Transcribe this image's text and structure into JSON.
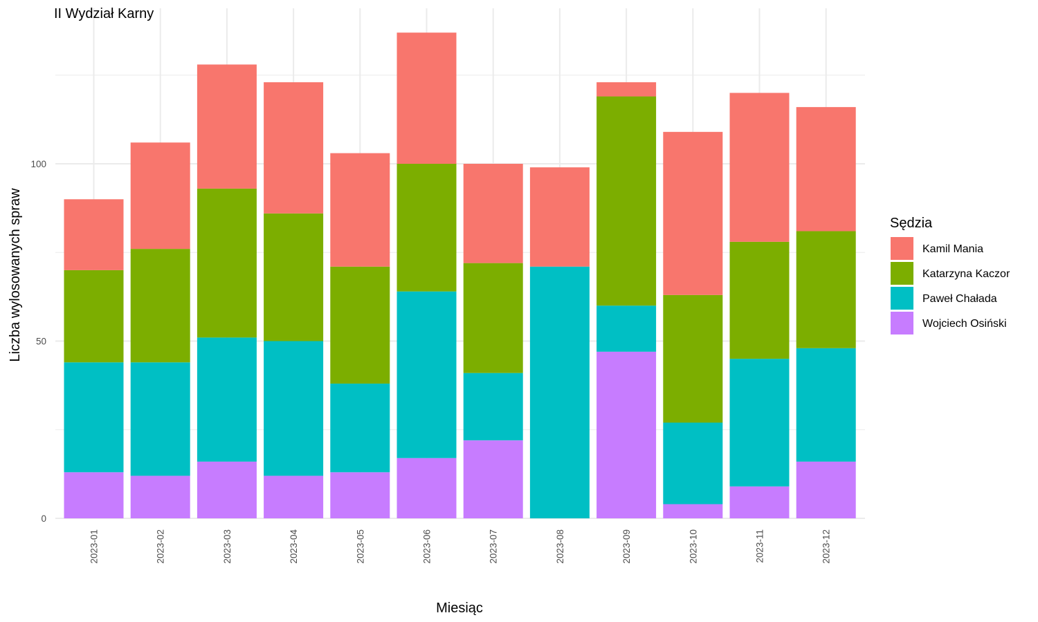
{
  "chart_data": {
    "type": "bar",
    "stacked": true,
    "title": "II Wydział Karny",
    "xlabel": "Miesiąc",
    "ylabel": "Liczba wylosowanych spraw",
    "ylim": [
      0,
      140
    ],
    "yticks": [
      0,
      50,
      100
    ],
    "grid": true,
    "legend": {
      "title": "Sędzia",
      "position": "right"
    },
    "categories": [
      "2023-01",
      "2023-02",
      "2023-03",
      "2023-04",
      "2023-05",
      "2023-06",
      "2023-07",
      "2023-08",
      "2023-09",
      "2023-10",
      "2023-11",
      "2023-12"
    ],
    "series": [
      {
        "name": "Wojciech Osiński",
        "color": "#C77CFF",
        "values": [
          13,
          12,
          16,
          12,
          13,
          17,
          22,
          0,
          47,
          4,
          9,
          16
        ]
      },
      {
        "name": "Paweł Chałada",
        "color": "#00BFC4",
        "values": [
          31,
          32,
          35,
          38,
          25,
          47,
          19,
          71,
          13,
          23,
          36,
          32
        ]
      },
      {
        "name": "Katarzyna Kaczor",
        "color": "#7CAE00",
        "values": [
          26,
          32,
          42,
          36,
          33,
          36,
          31,
          0,
          59,
          36,
          33,
          33
        ]
      },
      {
        "name": "Kamil Mania",
        "color": "#F8766D",
        "values": [
          20,
          30,
          35,
          37,
          32,
          37,
          28,
          28,
          4,
          46,
          42,
          35
        ]
      }
    ],
    "legend_order": [
      "Kamil Mania",
      "Katarzyna Kaczor",
      "Paweł Chałada",
      "Wojciech Osiński"
    ]
  }
}
